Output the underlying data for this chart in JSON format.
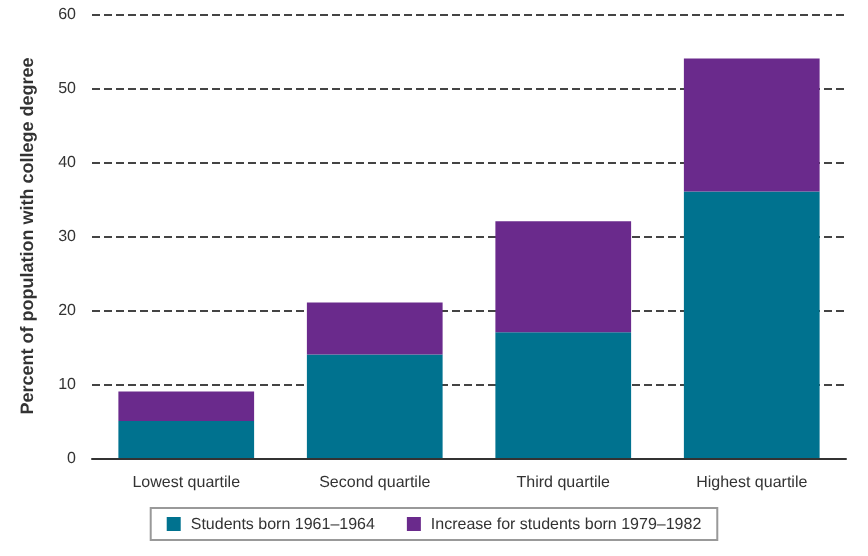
{
  "chart_data": {
    "type": "bar",
    "stacked": true,
    "ylabel": "Percent of population with college degree",
    "categories": [
      "Lowest quartile",
      "Second quartile",
      "Third quartile",
      "Highest quartile"
    ],
    "series": [
      {
        "name": "Students born 1961–1964",
        "color": "#00728f",
        "values": [
          5,
          14,
          17,
          36
        ]
      },
      {
        "name": "Increase for students born 1979–1982",
        "color": "#6a2a8c",
        "values": [
          4,
          7,
          15,
          18
        ]
      }
    ],
    "ylim": [
      0,
      60
    ],
    "yticks": [
      0,
      10,
      20,
      30,
      40,
      50,
      60
    ],
    "grid": "y",
    "legend": "bottom"
  }
}
